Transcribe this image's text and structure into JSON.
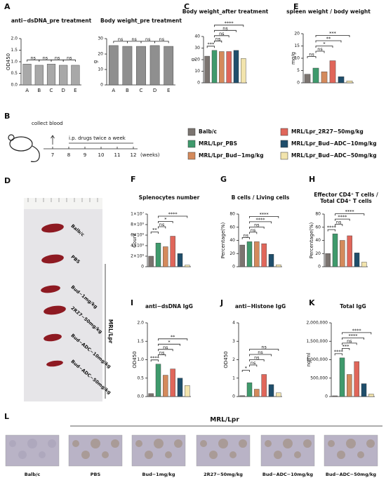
{
  "panels": [
    "A",
    "B",
    "C",
    "D",
    "E",
    "F",
    "G",
    "H",
    "I",
    "J",
    "K",
    "L"
  ],
  "legend": [
    {
      "name": "Balb/c",
      "color": "#7b7470"
    },
    {
      "name": "MRL/Lpr_PBS",
      "color": "#3f9a6c"
    },
    {
      "name": "MRL/Lpr_Bud−1mg/kg",
      "color": "#d48a5c"
    },
    {
      "name": "MRL/Lpr_2R27−50mg/kg",
      "color": "#e0665a"
    },
    {
      "name": "MRL/Lpr_Bud−ADC−10mg/kg",
      "color": "#1f4e6b"
    },
    {
      "name": "MRL/Lpr_Bud−ADC−50mg/kg",
      "color": "#f2e4ad"
    }
  ],
  "timeline": {
    "event": "collect blood",
    "treatment": "i.p. drugs twice a week",
    "weeks": [
      "7",
      "8",
      "9",
      "10",
      "11",
      "12"
    ],
    "unit": "(weeks)"
  },
  "spleen_photo": {
    "labels": [
      "Balb/c",
      "PBS",
      "Bud−1mg/kg",
      "2R27−50mg/kg",
      "Bud−ADC−10mg/kg",
      "Bud−ADC−50mg/kg"
    ],
    "group": "MRL/Lpr"
  },
  "histology": {
    "labels": [
      "Balb/c",
      "PBS",
      "Bud−1mg/kg",
      "2R27−50mg/kg",
      "Bud−ADC−10mg/kg",
      "Bud−ADC−50mg/kg"
    ],
    "group": "MRL/Lpr"
  },
  "chart_data": [
    {
      "type": "bar",
      "title": "anti−dsDNA_pre treatment",
      "ylabel": "OD450",
      "categories": [
        "A",
        "B",
        "C",
        "D",
        "E"
      ],
      "values": [
        0.9,
        0.85,
        0.9,
        0.85,
        0.85
      ],
      "color": "#a8a8a8",
      "ylim": [
        0,
        2
      ],
      "yticks": [
        {
          "value": 0,
          "label": "0.0"
        },
        {
          "value": 0.5,
          "label": "0.5"
        },
        {
          "value": 1,
          "label": "1.0"
        },
        {
          "value": 1.5,
          "label": "1.5"
        },
        {
          "value": 2,
          "label": "2.0"
        }
      ],
      "significance": [
        "ns",
        "ns",
        "ns",
        "ns"
      ]
    },
    {
      "type": "bar",
      "title": "Body weight_pre treatment",
      "ylabel": "g",
      "categories": [
        "A",
        "B",
        "C",
        "D",
        "E"
      ],
      "values": [
        25.5,
        25,
        25,
        25.5,
        25
      ],
      "color": "#8f8f8f",
      "ylim": [
        0,
        30
      ],
      "yticks": [
        0,
        10,
        20,
        30
      ],
      "significance": [
        "ns",
        "ns",
        "ns",
        "ns"
      ]
    },
    {
      "type": "bar",
      "title": "Body weight_after treatment",
      "ylabel": "g",
      "values": [
        23,
        28,
        27,
        27,
        28,
        21
      ],
      "ylim": [
        0,
        40
      ],
      "yticks": [
        0,
        10,
        20,
        30,
        40
      ],
      "significance": [
        "***",
        "ns",
        "ns",
        "ns",
        "****"
      ]
    },
    {
      "type": "bar",
      "title": "spleen weight / body weight",
      "ylabel": "mg/g",
      "values": [
        3.5,
        6,
        4.5,
        9,
        2.5,
        0.8
      ],
      "ylim": [
        0,
        20
      ],
      "yticks": [
        0,
        5,
        10,
        15,
        20
      ],
      "significance": [
        "ns",
        "ns",
        "*",
        "**",
        "***"
      ]
    },
    {
      "type": "bar",
      "title": "Splenocytes number",
      "ylabel": "Count",
      "values": [
        2000000,
        4500000,
        3800000,
        5800000,
        2500000,
        300000
      ],
      "ylim": [
        0,
        10000000
      ],
      "yticks": [
        0,
        {
          "value": 2000000,
          "label": "2×10⁶"
        },
        {
          "value": 4000000,
          "label": "4×10⁶"
        },
        {
          "value": 6000000,
          "label": "6×10⁶"
        },
        {
          "value": 8000000,
          "label": "8×10⁶"
        },
        {
          "value": 10000000,
          "label": "1×10⁷"
        }
      ],
      "significance": [
        "**",
        "ns",
        "*",
        "****"
      ]
    },
    {
      "type": "bar",
      "title": "B cells / Living cells",
      "ylabel": "Percentage(%)",
      "values": [
        33,
        38,
        38,
        35,
        19,
        3
      ],
      "ylim": [
        0,
        80
      ],
      "yticks": [
        0,
        20,
        40,
        60,
        80
      ],
      "significance": [
        "ns",
        "ns",
        "ns",
        "****",
        "****"
      ]
    },
    {
      "type": "bar",
      "title": [
        "Effector CD4⁺ T cells /",
        "Total CD4⁺ T cells"
      ],
      "ylabel": "Percentage(%)",
      "values": [
        20,
        50,
        40,
        47,
        21,
        7
      ],
      "ylim": [
        0,
        80
      ],
      "yticks": [
        0,
        20,
        40,
        60,
        80
      ],
      "significance": [
        "****",
        "ns",
        "****",
        "****"
      ]
    },
    {
      "type": "bar",
      "title": "anti−dsDNA IgG",
      "ylabel": "OD450",
      "values": [
        0.08,
        0.88,
        0.58,
        0.75,
        0.5,
        0.3
      ],
      "ylim": [
        0,
        2
      ],
      "yticks": [
        {
          "value": 0,
          "label": "0.0"
        },
        {
          "value": 0.5,
          "label": "0.5"
        },
        {
          "value": 1,
          "label": "1.0"
        },
        {
          "value": 1.5,
          "label": "1.5"
        },
        {
          "value": 2,
          "label": "2.0"
        }
      ],
      "significance": [
        "****",
        "ns",
        "ns",
        "*",
        "**"
      ]
    },
    {
      "type": "bar",
      "title": "anti−Histone IgG",
      "ylabel": "OD450",
      "values": [
        0.05,
        0.75,
        0.4,
        1.2,
        0.65,
        0.2
      ],
      "ylim": [
        0,
        4
      ],
      "yticks": [
        0,
        1,
        2,
        3,
        4
      ],
      "significance": [
        "*",
        "ns",
        "ns",
        "ns",
        "ns"
      ]
    },
    {
      "type": "bar",
      "title": "Total IgG",
      "ylabel": "ng/ml",
      "values": [
        20000,
        1050000,
        600000,
        950000,
        350000,
        70000
      ],
      "ylim": [
        0,
        2000000
      ],
      "yticks": [
        0,
        {
          "value": 500000,
          "label": "500,000"
        },
        {
          "value": 1000000,
          "label": "1,000,000"
        },
        {
          "value": 1500000,
          "label": "1,500,000"
        },
        {
          "value": 2000000,
          "label": "2,000,000"
        }
      ],
      "significance": [
        "****",
        "***",
        "ns",
        "****",
        "****"
      ]
    }
  ]
}
